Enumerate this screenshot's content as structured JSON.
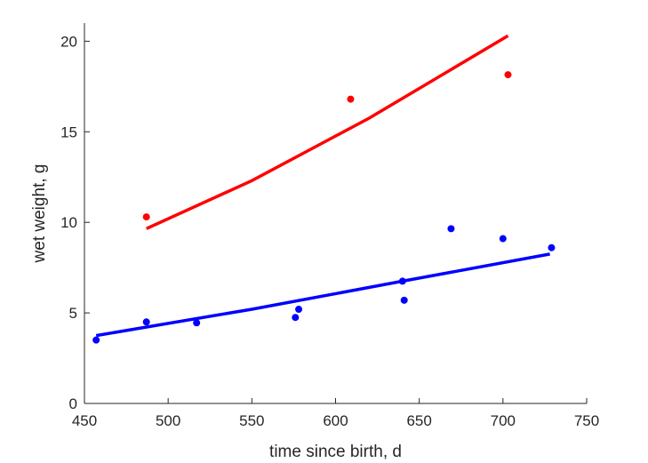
{
  "chart_data": {
    "type": "scatter",
    "xlabel": "time since birth, d",
    "ylabel": "wet weight, g",
    "xlim": [
      450,
      750
    ],
    "ylim": [
      0,
      21
    ],
    "xticks": [
      450,
      500,
      550,
      600,
      650,
      700,
      750
    ],
    "yticks": [
      0,
      5,
      10,
      15,
      20
    ],
    "grid": false,
    "series": [
      {
        "color": "#0000ff",
        "points": [
          {
            "x": 457,
            "y": 3.5
          },
          {
            "x": 487,
            "y": 4.5
          },
          {
            "x": 517,
            "y": 4.45
          },
          {
            "x": 576,
            "y": 4.75
          },
          {
            "x": 578,
            "y": 5.2
          },
          {
            "x": 640,
            "y": 6.75
          },
          {
            "x": 641,
            "y": 5.7
          },
          {
            "x": 669,
            "y": 9.65
          },
          {
            "x": 700,
            "y": 9.1
          },
          {
            "x": 729,
            "y": 8.6
          }
        ],
        "fit": [
          {
            "x": 457,
            "y": 3.75
          },
          {
            "x": 550,
            "y": 5.2
          },
          {
            "x": 640,
            "y": 6.75
          },
          {
            "x": 728,
            "y": 8.25
          }
        ]
      },
      {
        "color": "#ff0000",
        "points": [
          {
            "x": 487,
            "y": 10.3
          },
          {
            "x": 609,
            "y": 16.8
          },
          {
            "x": 703,
            "y": 18.15
          }
        ],
        "fit": [
          {
            "x": 487,
            "y": 9.65
          },
          {
            "x": 550,
            "y": 12.3
          },
          {
            "x": 620,
            "y": 15.75
          },
          {
            "x": 703,
            "y": 20.3
          }
        ]
      }
    ]
  }
}
